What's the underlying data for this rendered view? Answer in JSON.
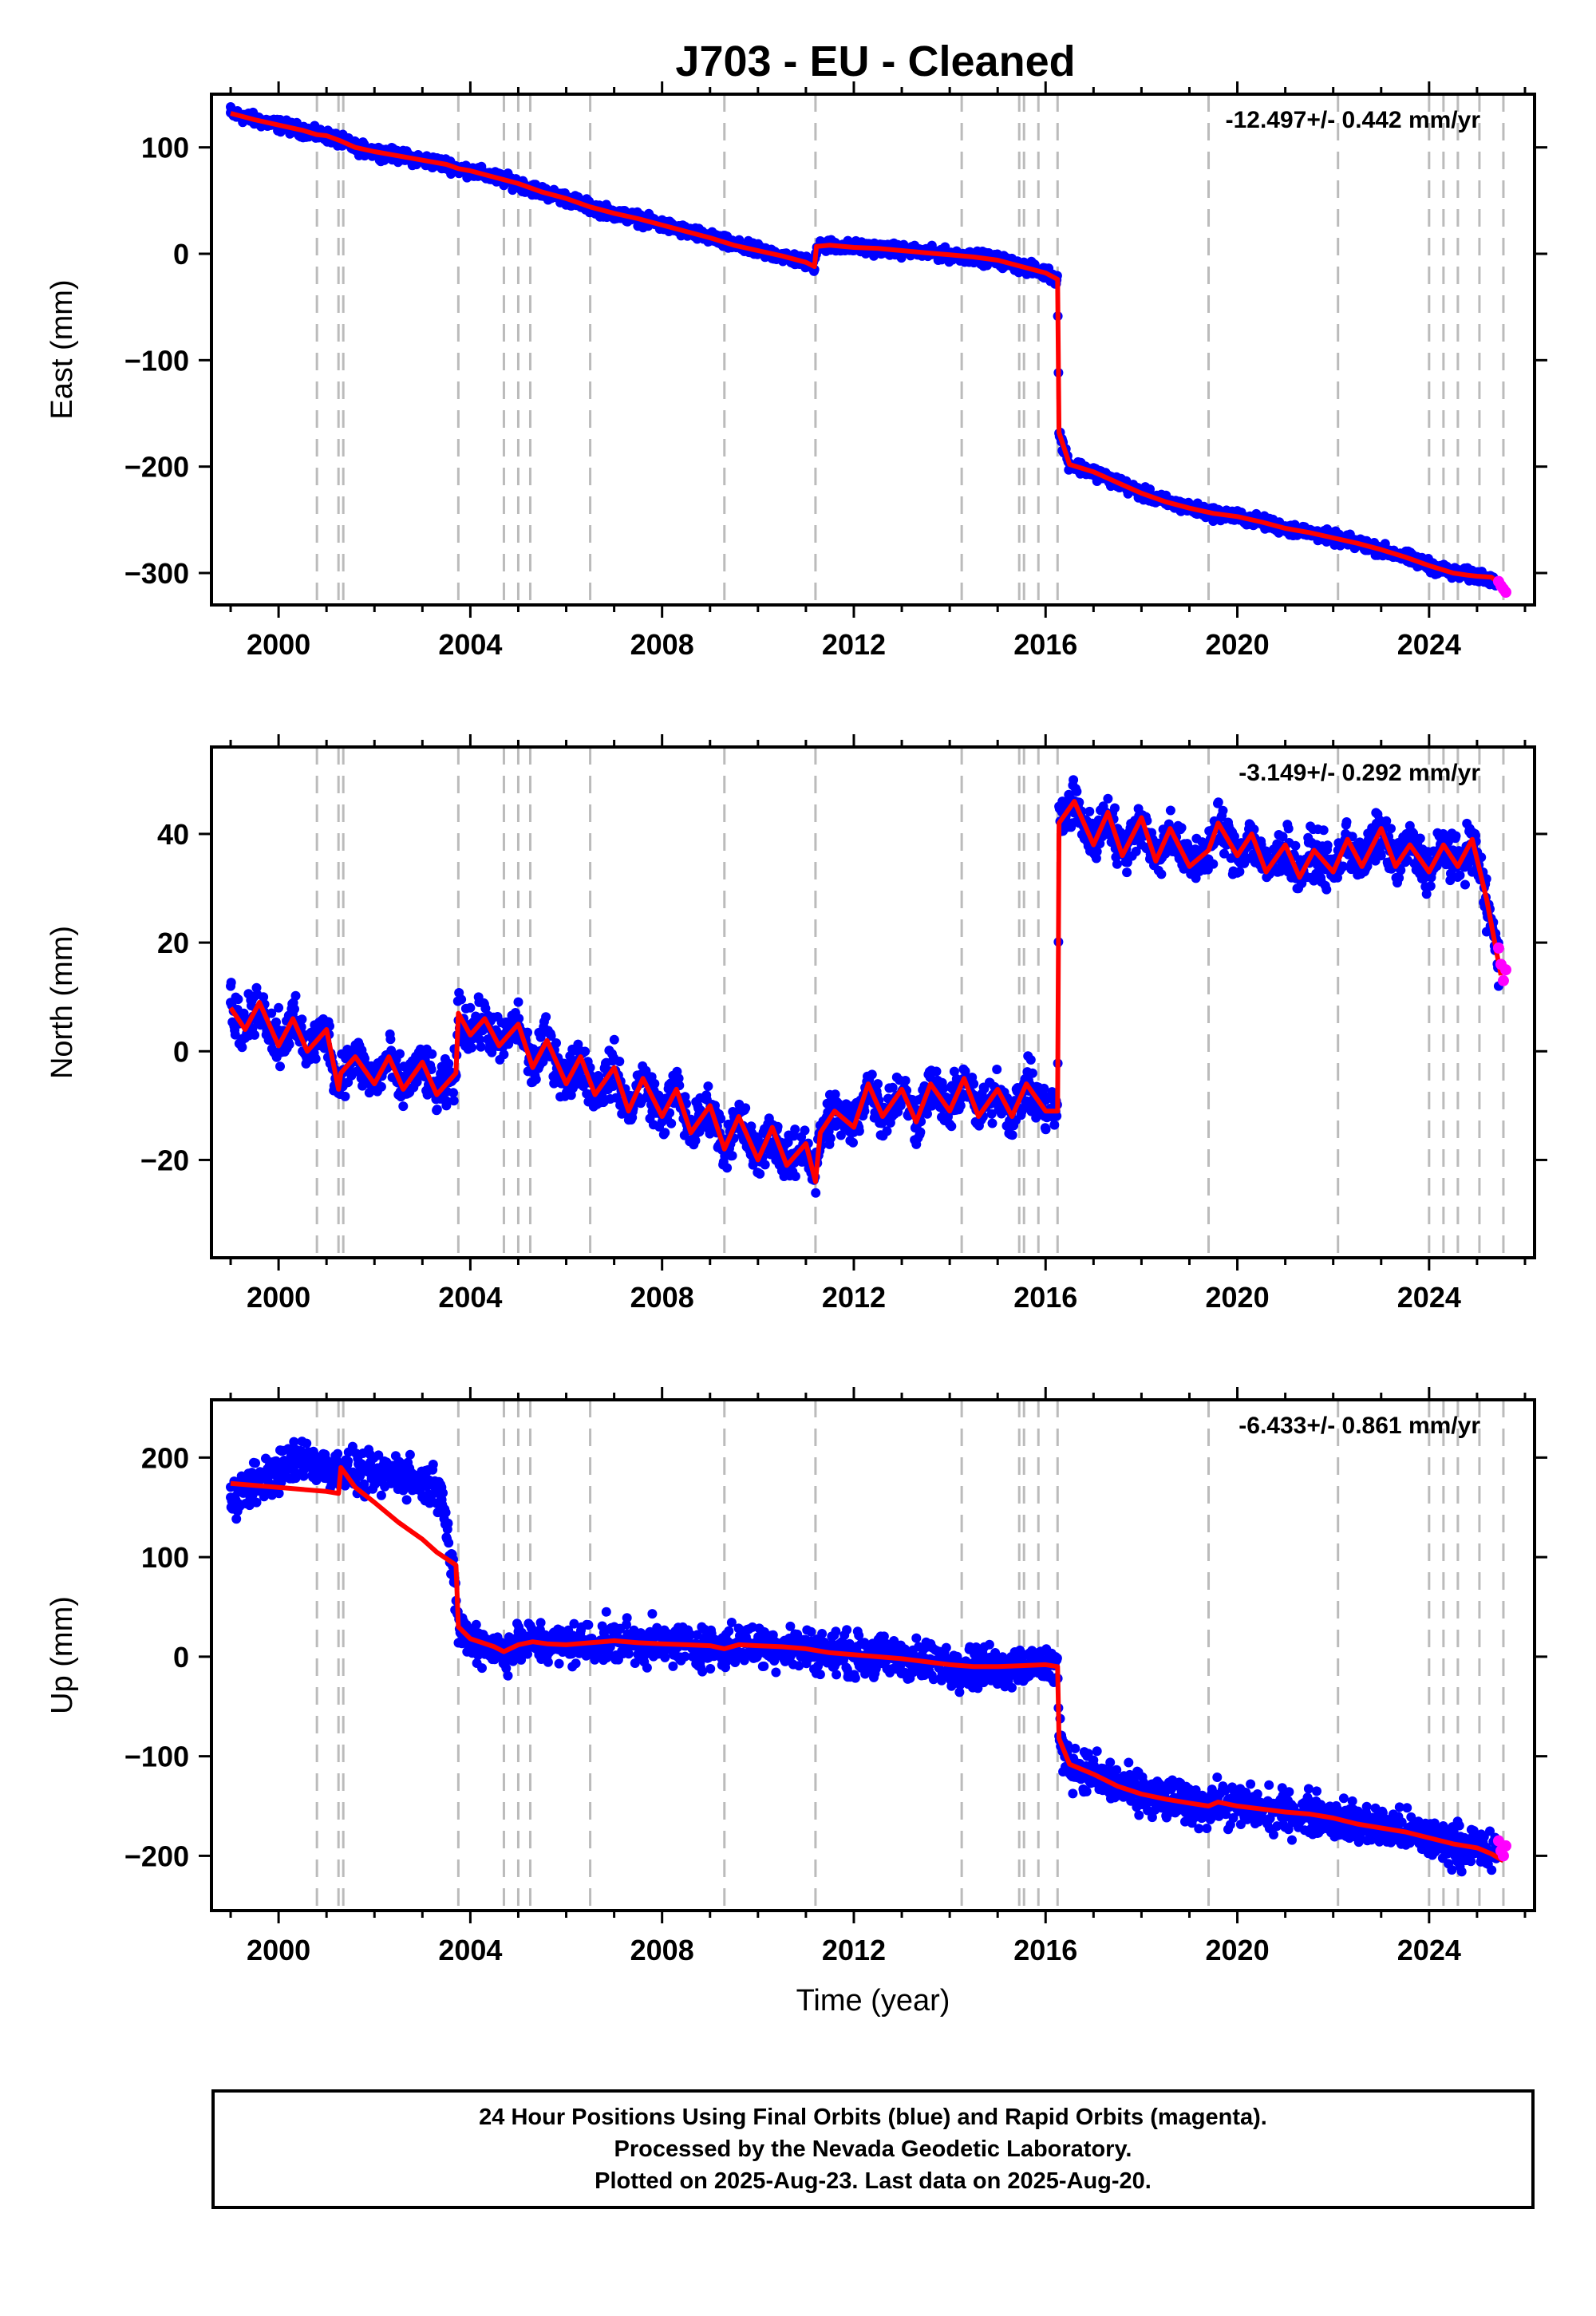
{
  "title": "J703  - EU - Cleaned",
  "footer": {
    "line1": "24 Hour Positions Using Final Orbits (blue) and Rapid Orbits (magenta).",
    "line2": "Processed by the Nevada Geodetic Laboratory.",
    "line3": "Plotted on 2025-Aug-23. Last data on 2025-Aug-20."
  },
  "colors": {
    "final": "#0000ff",
    "rapid": "#ff00ff",
    "model": "#ff0000",
    "event_lines": "#bbbbbb"
  },
  "chart_data": [
    {
      "type": "scatter",
      "component": "East",
      "ylabel": "East (mm)",
      "xlabel": "",
      "rate_text": "-12.497+/- 0.442 mm/yr",
      "xlim": [
        1998.6,
        2026.2
      ],
      "ylim": [
        -330,
        150
      ],
      "x_ticks": [
        2000,
        2004,
        2008,
        2012,
        2016,
        2020,
        2024
      ],
      "y_ticks": [
        100,
        0,
        -100,
        -200,
        -300
      ],
      "y_tick_labels": [
        "100",
        "0",
        "−100",
        "−200",
        "−300"
      ],
      "events": [
        2000.8,
        2001.25,
        2001.35,
        2003.75,
        2004.7,
        2005.0,
        2005.25,
        2006.5,
        2009.3,
        2011.2,
        2014.25,
        2015.45,
        2015.55,
        2015.85,
        2016.25,
        2019.4,
        2022.1,
        2024.0,
        2024.3,
        2024.6,
        2025.05,
        2025.55
      ],
      "series": [
        {
          "name": "Model",
          "x": [
            1999.0,
            1999.5,
            2000.0,
            2000.5,
            2000.8,
            2001.0,
            2001.3,
            2001.6,
            2002.0,
            2002.5,
            2003.0,
            2003.5,
            2003.75,
            2004.0,
            2004.5,
            2005.0,
            2005.5,
            2006.0,
            2006.5,
            2007.0,
            2007.5,
            2008.0,
            2008.5,
            2009.0,
            2009.5,
            2010.0,
            2010.5,
            2011.0,
            2011.18,
            2011.22,
            2011.5,
            2012.0,
            2012.5,
            2013.0,
            2013.5,
            2014.0,
            2014.5,
            2015.0,
            2015.5,
            2016.0,
            2016.25,
            2016.28,
            2016.5,
            2017.0,
            2017.5,
            2018.0,
            2018.5,
            2019.0,
            2019.5,
            2020.0,
            2020.5,
            2021.0,
            2021.5,
            2022.0,
            2022.5,
            2023.0,
            2023.5,
            2024.0,
            2024.5,
            2024.8,
            2025.0,
            2025.3,
            2025.55
          ],
          "y": [
            132,
            126,
            121,
            116,
            112,
            111,
            106,
            100,
            96,
            92,
            88,
            84,
            80,
            78,
            72,
            66,
            58,
            52,
            44,
            38,
            33,
            27,
            21,
            15,
            8,
            3,
            -2,
            -8,
            -12,
            7,
            8,
            6,
            5,
            3,
            1,
            -1,
            -3,
            -6,
            -12,
            -18,
            -24,
            -168,
            -198,
            -205,
            -215,
            -225,
            -233,
            -239,
            -244,
            -247,
            -252,
            -258,
            -262,
            -267,
            -272,
            -278,
            -285,
            -293,
            -300,
            -302,
            -303,
            -304,
            -312
          ]
        },
        {
          "name": "Final",
          "x": [
            1999.0,
            1999.5,
            2000.0,
            2000.5,
            2001.0,
            2001.5,
            2002.0,
            2002.5,
            2003.0,
            2003.5,
            2004.0,
            2004.5,
            2005.0,
            2005.5,
            2006.0,
            2006.5,
            2007.0,
            2007.5,
            2008.0,
            2008.5,
            2009.0,
            2009.5,
            2010.0,
            2010.5,
            2011.0,
            2011.3,
            2011.6,
            2012.0,
            2012.5,
            2013.0,
            2013.5,
            2014.0,
            2014.5,
            2015.0,
            2015.5,
            2016.0,
            2016.35,
            2016.6,
            2017.0,
            2017.5,
            2018.0,
            2018.5,
            2019.0,
            2019.5,
            2020.0,
            2020.5,
            2021.0,
            2021.5,
            2022.0,
            2022.5,
            2023.0,
            2023.5,
            2024.0,
            2024.5,
            2025.0,
            2025.4
          ],
          "y": [
            138,
            130,
            124,
            118,
            112,
            104,
            99,
            94,
            90,
            86,
            80,
            74,
            68,
            60,
            54,
            46,
            40,
            35,
            29,
            23,
            17,
            10,
            5,
            0,
            -5,
            12,
            10,
            9,
            8,
            6,
            3,
            1,
            -2,
            -5,
            -10,
            -16,
            -185,
            -202,
            -208,
            -218,
            -227,
            -235,
            -241,
            -246,
            -249,
            -254,
            -260,
            -264,
            -269,
            -274,
            -280,
            -287,
            -295,
            -302,
            -305,
            -307
          ]
        },
        {
          "name": "Rapid",
          "x": [
            2025.45,
            2025.5,
            2025.55,
            2025.6
          ],
          "y": [
            -308,
            -312,
            -315,
            -318
          ]
        }
      ]
    },
    {
      "type": "scatter",
      "component": "North",
      "ylabel": "North (mm)",
      "xlabel": "",
      "rate_text": "-3.149+/- 0.292 mm/yr",
      "xlim": [
        1998.6,
        2026.2
      ],
      "ylim": [
        -38,
        56
      ],
      "x_ticks": [
        2000,
        2004,
        2008,
        2012,
        2016,
        2020,
        2024
      ],
      "y_ticks": [
        40,
        20,
        0,
        -20
      ],
      "y_tick_labels": [
        "40",
        "20",
        "0",
        "−20"
      ],
      "events": [
        2000.8,
        2001.25,
        2001.35,
        2003.75,
        2004.7,
        2005.0,
        2005.25,
        2006.5,
        2009.3,
        2011.2,
        2014.25,
        2015.45,
        2015.55,
        2015.85,
        2016.25,
        2019.4,
        2022.1,
        2024.0,
        2024.3,
        2024.6,
        2025.05,
        2025.55
      ],
      "series": [
        {
          "name": "Model",
          "x": [
            1999.0,
            1999.3,
            1999.6,
            2000.0,
            2000.3,
            2000.6,
            2001.0,
            2001.25,
            2001.3,
            2001.6,
            2002.0,
            2002.3,
            2002.6,
            2003.0,
            2003.3,
            2003.7,
            2003.75,
            2004.0,
            2004.3,
            2004.6,
            2005.0,
            2005.3,
            2005.6,
            2006.0,
            2006.3,
            2006.6,
            2007.0,
            2007.3,
            2007.6,
            2008.0,
            2008.3,
            2008.6,
            2009.0,
            2009.3,
            2009.6,
            2010.0,
            2010.3,
            2010.6,
            2011.0,
            2011.2,
            2011.3,
            2011.6,
            2012.0,
            2012.3,
            2012.6,
            2013.0,
            2013.3,
            2013.6,
            2014.0,
            2014.3,
            2014.6,
            2015.0,
            2015.3,
            2015.6,
            2016.0,
            2016.25,
            2016.28,
            2016.6,
            2017.0,
            2017.3,
            2017.6,
            2018.0,
            2018.3,
            2018.6,
            2019.0,
            2019.4,
            2019.6,
            2020.0,
            2020.3,
            2020.6,
            2021.0,
            2021.3,
            2021.6,
            2022.0,
            2022.3,
            2022.6,
            2023.0,
            2023.3,
            2023.6,
            2024.0,
            2024.3,
            2024.6,
            2024.9,
            2025.2,
            2025.5
          ],
          "y": [
            8,
            4,
            9,
            1,
            6,
            0,
            4,
            -7,
            -4,
            -1,
            -6,
            -1,
            -7,
            -2,
            -8,
            -4,
            7,
            3,
            6,
            1,
            5,
            -3,
            2,
            -6,
            -1,
            -8,
            -3,
            -11,
            -5,
            -12,
            -7,
            -15,
            -10,
            -18,
            -12,
            -20,
            -14,
            -21,
            -17,
            -24,
            -15,
            -11,
            -14,
            -6,
            -12,
            -7,
            -13,
            -6,
            -11,
            -5,
            -12,
            -7,
            -12,
            -6,
            -11,
            -11,
            42,
            46,
            38,
            44,
            36,
            43,
            35,
            41,
            34,
            37,
            42,
            36,
            40,
            33,
            38,
            32,
            37,
            33,
            39,
            34,
            41,
            34,
            38,
            33,
            38,
            34,
            39,
            28,
            14
          ]
        },
        {
          "name": "Final",
          "x": [
            1999.0,
            1999.5,
            2000.0,
            2000.5,
            2001.0,
            2001.5,
            2002.0,
            2002.5,
            2003.0,
            2003.5,
            2004.0,
            2004.5,
            2005.0,
            2005.5,
            2006.0,
            2006.5,
            2007.0,
            2007.5,
            2008.0,
            2008.5,
            2009.0,
            2009.5,
            2010.0,
            2010.5,
            2011.0,
            2011.5,
            2012.0,
            2012.5,
            2013.0,
            2013.5,
            2014.0,
            2014.5,
            2015.0,
            2015.5,
            2016.0,
            2016.35,
            2016.7,
            2017.0,
            2017.5,
            2018.0,
            2018.5,
            2019.0,
            2019.5,
            2020.0,
            2020.5,
            2021.0,
            2021.5,
            2022.0,
            2022.5,
            2023.0,
            2023.5,
            2024.0,
            2024.5,
            2024.9,
            2025.2,
            2025.45
          ],
          "y": [
            12,
            3,
            8,
            0,
            2,
            -4,
            -3,
            -8,
            -4,
            -10,
            8,
            2,
            4,
            -2,
            -4,
            -3,
            -6,
            -9,
            -10,
            -13,
            -12,
            -16,
            -16,
            -22,
            -18,
            -8,
            -10,
            -6,
            -9,
            -8,
            -10,
            -6,
            -9,
            -7,
            -9,
            46,
            42,
            40,
            41,
            38,
            39,
            36,
            38,
            37,
            38,
            34,
            36,
            35,
            38,
            36,
            37,
            35,
            37,
            33,
            22,
            12
          ]
        },
        {
          "name": "Rapid",
          "x": [
            2025.45,
            2025.5,
            2025.55,
            2025.6
          ],
          "y": [
            19,
            16,
            13,
            15
          ]
        }
      ]
    },
    {
      "type": "scatter",
      "component": "Up",
      "ylabel": "Up (mm)",
      "xlabel": "Time (year)",
      "rate_text": "-6.433+/- 0.861 mm/yr",
      "xlim": [
        1998.6,
        2026.2
      ],
      "ylim": [
        -255,
        258
      ],
      "x_ticks": [
        2000,
        2004,
        2008,
        2012,
        2016,
        2020,
        2024
      ],
      "y_ticks": [
        200,
        100,
        0,
        -100,
        -200
      ],
      "y_tick_labels": [
        "200",
        "100",
        "0",
        "−100",
        "−200"
      ],
      "events": [
        2000.8,
        2001.25,
        2001.35,
        2003.75,
        2004.7,
        2005.0,
        2005.25,
        2006.5,
        2009.3,
        2011.2,
        2014.25,
        2015.45,
        2015.55,
        2015.85,
        2016.25,
        2019.4,
        2022.1,
        2024.0,
        2024.3,
        2024.6,
        2025.05,
        2025.55
      ],
      "series": [
        {
          "name": "Model",
          "x": [
            1999.0,
            1999.5,
            2000.0,
            2000.5,
            2001.0,
            2001.25,
            2001.3,
            2001.6,
            2002.0,
            2002.5,
            2003.0,
            2003.3,
            2003.7,
            2003.75,
            2004.0,
            2004.5,
            2004.7,
            2005.0,
            2005.3,
            2005.6,
            2006.0,
            2006.5,
            2007.0,
            2007.5,
            2008.0,
            2008.5,
            2009.0,
            2009.3,
            2009.6,
            2010.0,
            2010.5,
            2011.0,
            2011.5,
            2012.0,
            2012.5,
            2013.0,
            2013.5,
            2014.0,
            2014.5,
            2015.0,
            2015.5,
            2016.0,
            2016.25,
            2016.28,
            2016.5,
            2017.0,
            2017.5,
            2018.0,
            2018.5,
            2019.0,
            2019.4,
            2019.6,
            2020.0,
            2020.5,
            2021.0,
            2021.5,
            2022.0,
            2022.5,
            2023.0,
            2023.5,
            2024.0,
            2024.5,
            2025.0,
            2025.3,
            2025.55
          ],
          "y": [
            174,
            172,
            170,
            168,
            166,
            164,
            190,
            170,
            155,
            135,
            118,
            105,
            92,
            30,
            18,
            10,
            5,
            12,
            15,
            13,
            12,
            14,
            16,
            14,
            13,
            12,
            11,
            8,
            12,
            11,
            10,
            8,
            4,
            2,
            0,
            -2,
            -5,
            -8,
            -10,
            -10,
            -9,
            -8,
            -10,
            -82,
            -108,
            -118,
            -130,
            -138,
            -143,
            -147,
            -150,
            -146,
            -150,
            -153,
            -156,
            -158,
            -162,
            -168,
            -172,
            -176,
            -182,
            -188,
            -192,
            -198,
            -205
          ]
        },
        {
          "name": "Final",
          "x": [
            1999.0,
            1999.5,
            2000.0,
            2000.5,
            2001.0,
            2001.5,
            2002.0,
            2002.5,
            2003.0,
            2003.4,
            2003.8,
            2004.0,
            2004.5,
            2005.0,
            2005.5,
            2006.0,
            2006.5,
            2007.0,
            2007.5,
            2008.0,
            2008.5,
            2009.0,
            2009.5,
            2010.0,
            2010.5,
            2011.0,
            2011.5,
            2012.0,
            2012.5,
            2013.0,
            2013.5,
            2014.0,
            2014.5,
            2015.0,
            2015.5,
            2016.0,
            2016.35,
            2016.5,
            2017.0,
            2017.5,
            2018.0,
            2018.5,
            2019.0,
            2019.5,
            2020.0,
            2020.5,
            2021.0,
            2021.5,
            2022.0,
            2022.5,
            2023.0,
            2023.5,
            2024.0,
            2024.5,
            2025.0,
            2025.4
          ],
          "y": [
            160,
            175,
            185,
            200,
            190,
            185,
            180,
            185,
            175,
            170,
            15,
            12,
            10,
            14,
            18,
            16,
            18,
            22,
            20,
            18,
            16,
            14,
            12,
            12,
            10,
            8,
            6,
            4,
            2,
            0,
            -2,
            -4,
            -6,
            -8,
            -8,
            -6,
            -95,
            -110,
            -120,
            -130,
            -138,
            -142,
            -148,
            -150,
            -152,
            -155,
            -158,
            -160,
            -163,
            -168,
            -172,
            -176,
            -182,
            -188,
            -195,
            -200
          ]
        },
        {
          "name": "Rapid",
          "x": [
            2025.45,
            2025.5,
            2025.55,
            2025.6
          ],
          "y": [
            -185,
            -195,
            -200,
            -190
          ]
        }
      ]
    }
  ]
}
